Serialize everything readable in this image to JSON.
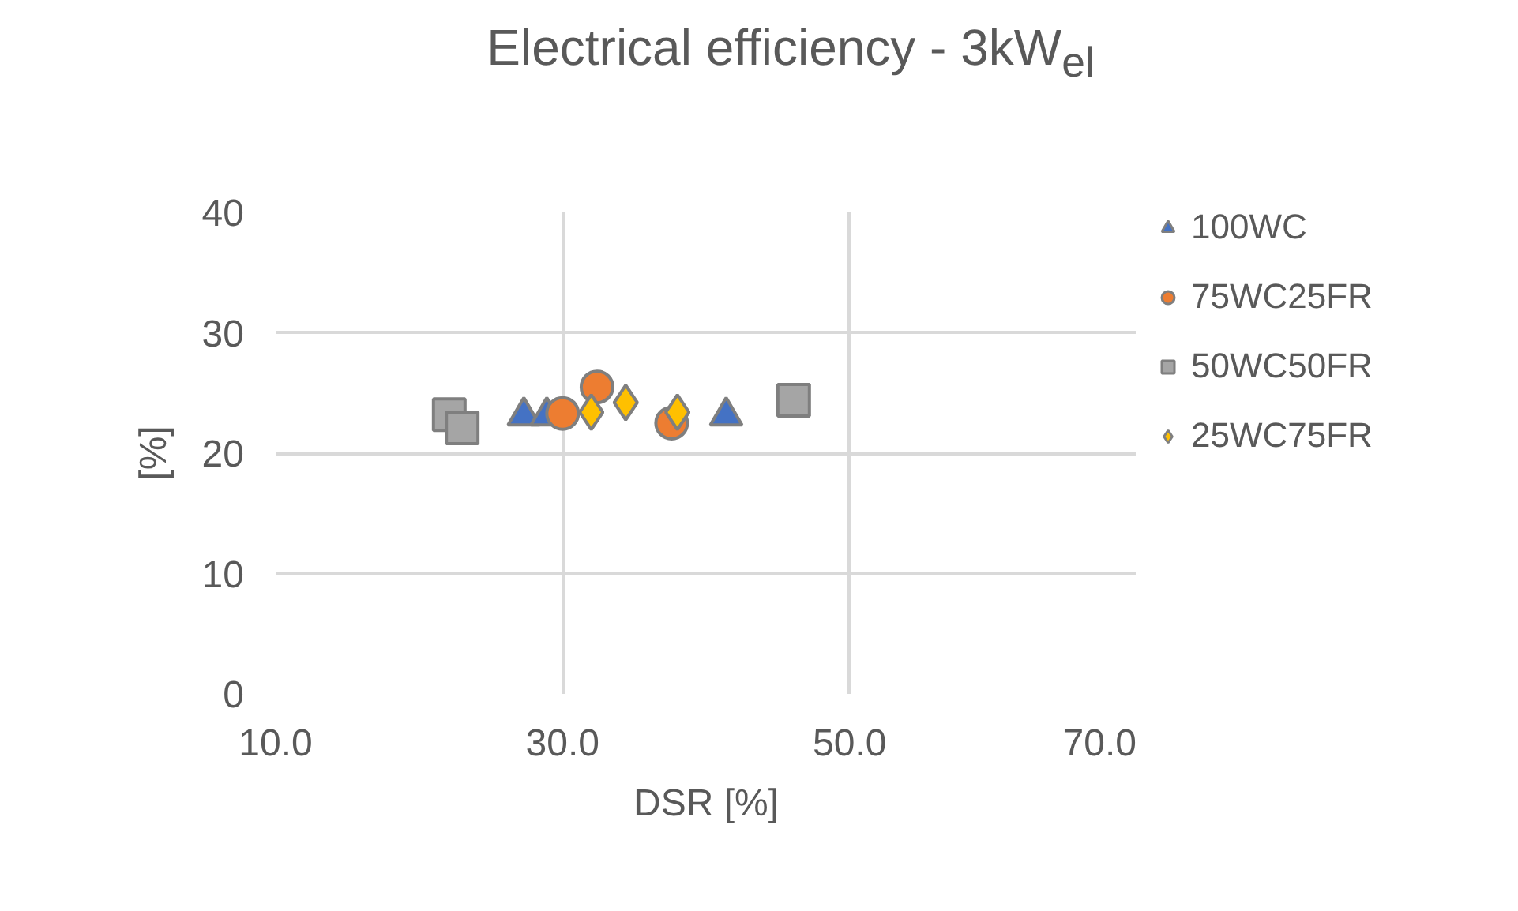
{
  "chart_data": {
    "type": "scatter",
    "title": "Electrical efficiency - 3kW$_{el}$",
    "xlabel": "DSR [%]",
    "ylabel": "[%]",
    "xlim": [
      10,
      70
    ],
    "xticks": [
      {
        "value": 10,
        "label": "10.0"
      },
      {
        "value": 30,
        "label": "30.0"
      },
      {
        "value": 50,
        "label": "50.0"
      },
      {
        "value": 70,
        "label": "70.0"
      }
    ],
    "ylim": [
      0,
      40
    ],
    "yticks": [
      0,
      10,
      20,
      30,
      40
    ],
    "grid": true,
    "legend": "right",
    "series": [
      {
        "name": "100WC",
        "color": "#4472c4",
        "marker": "triangle",
        "x": [
          27.3,
          28.9,
          41.4
        ],
        "values": [
          23.1,
          23.1,
          23.1
        ]
      },
      {
        "name": "75WC25FR",
        "color": "#ed7d31",
        "marker": "circle",
        "x": [
          30.0,
          32.4,
          37.6
        ],
        "values": [
          23.3,
          25.5,
          22.5
        ]
      },
      {
        "name": "50WC50FR",
        "color": "#a5a5a5",
        "marker": "square",
        "x": [
          22.1,
          23.0,
          46.1
        ],
        "values": [
          23.2,
          22.1,
          24.4
        ]
      },
      {
        "name": "25WC75FR",
        "color": "#ffc000",
        "marker": "diamond",
        "x": [
          32.0,
          34.4,
          38.0
        ],
        "values": [
          23.4,
          24.2,
          23.4
        ]
      }
    ]
  }
}
